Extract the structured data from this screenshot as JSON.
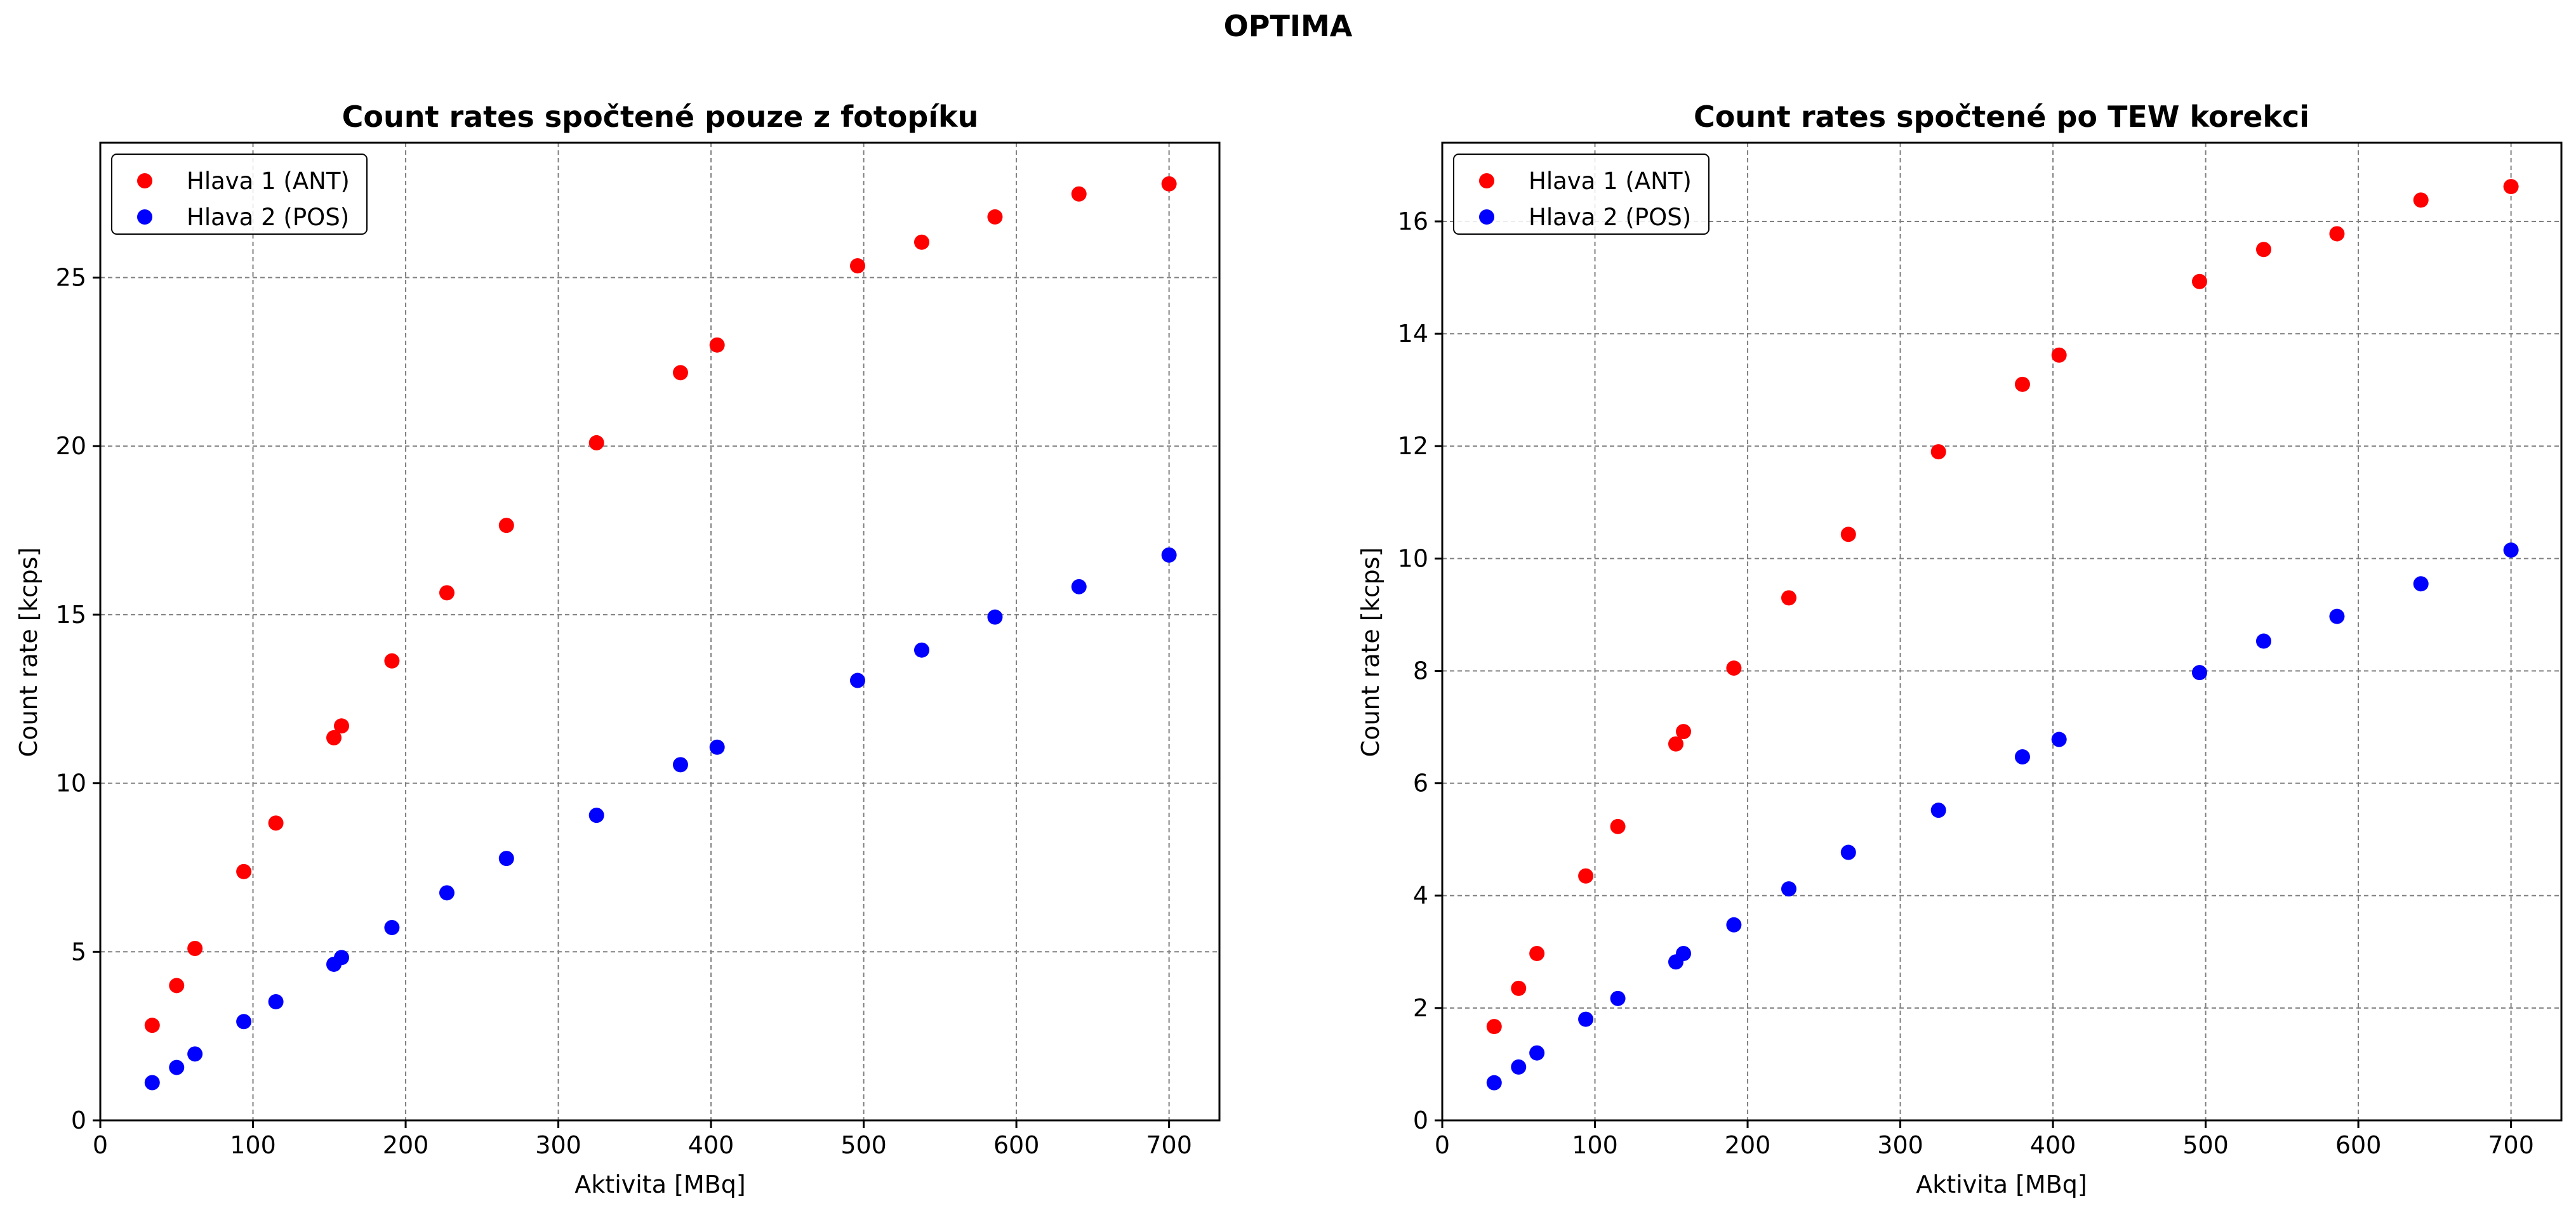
{
  "figure": {
    "suptitle": "OPTIMA"
  },
  "chart_data": [
    {
      "type": "scatter",
      "title": "Count rates spočtené pouze z fotopíku",
      "xlabel": "Aktivita [MBq]",
      "ylabel": "Count rate [kcps]",
      "xlim": [
        0,
        733
      ],
      "ylim": [
        0,
        29
      ],
      "xticks": [
        0,
        100,
        200,
        300,
        400,
        500,
        600,
        700
      ],
      "yticks": [
        0,
        5,
        10,
        15,
        20,
        25
      ],
      "grid": true,
      "legend_position": "top-left",
      "x": [
        34,
        50,
        62,
        94,
        115,
        153,
        158,
        191,
        227,
        266,
        325,
        380,
        404,
        496,
        538,
        586,
        641,
        700
      ],
      "series": [
        {
          "name": "Hlava 1 (ANT)",
          "color": "#ff0000",
          "values": [
            2.82,
            4.0,
            5.1,
            7.38,
            8.82,
            11.35,
            11.7,
            13.63,
            15.65,
            17.65,
            20.1,
            22.18,
            23.0,
            25.35,
            26.05,
            26.8,
            27.48,
            27.78
          ]
        },
        {
          "name": "Hlava 2 (POS)",
          "color": "#0000ff",
          "values": [
            1.12,
            1.57,
            1.97,
            2.93,
            3.52,
            4.63,
            4.83,
            5.72,
            6.75,
            7.77,
            9.05,
            10.55,
            11.07,
            13.05,
            13.95,
            14.93,
            15.83,
            16.77
          ]
        }
      ]
    },
    {
      "type": "scatter",
      "title": "Count rates spočtené po TEW korekci",
      "xlabel": "Aktivita [MBq]",
      "ylabel": "Count rate [kcps]",
      "xlim": [
        0,
        733
      ],
      "ylim": [
        0,
        17.4
      ],
      "xticks": [
        0,
        100,
        200,
        300,
        400,
        500,
        600,
        700
      ],
      "yticks": [
        0,
        2,
        4,
        6,
        8,
        10,
        12,
        14,
        16
      ],
      "grid": true,
      "legend_position": "top-left",
      "x": [
        34,
        50,
        62,
        94,
        115,
        153,
        158,
        191,
        227,
        266,
        325,
        380,
        404,
        496,
        538,
        586,
        641,
        700
      ],
      "series": [
        {
          "name": "Hlava 1 (ANT)",
          "color": "#ff0000",
          "values": [
            1.67,
            2.35,
            2.97,
            4.35,
            5.23,
            6.7,
            6.92,
            8.05,
            9.3,
            10.43,
            11.9,
            13.1,
            13.62,
            14.93,
            15.5,
            15.78,
            16.38,
            16.62
          ]
        },
        {
          "name": "Hlava 2 (POS)",
          "color": "#0000ff",
          "values": [
            0.67,
            0.95,
            1.2,
            1.8,
            2.17,
            2.82,
            2.97,
            3.48,
            4.12,
            4.77,
            5.52,
            6.47,
            6.78,
            7.97,
            8.53,
            8.97,
            9.55,
            10.15
          ]
        }
      ]
    }
  ]
}
